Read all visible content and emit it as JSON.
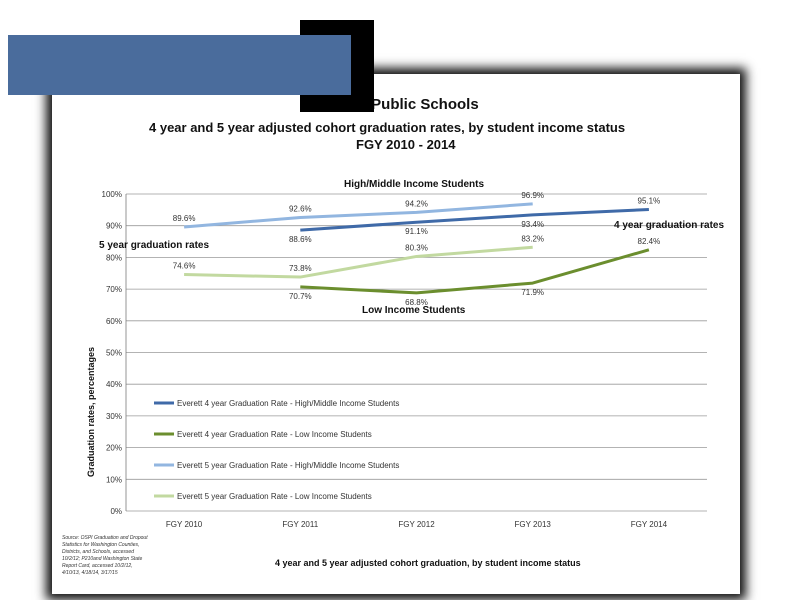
{
  "chart_data": {
    "type": "line",
    "title": "t Public Schools",
    "subtitle": "4 year and 5 year adjusted cohort graduation rates, by student income status",
    "subtitle2": "FGY 2010 - 2014",
    "xlabel": "4 year and 5 year adjusted cohort graduation, by student income status",
    "ylabel": "Graduation rates, percentages",
    "categories": [
      "FGY 2010",
      "FGY 2011",
      "FGY 2012",
      "FGY 2013",
      "FGY 2014"
    ],
    "ylim": [
      0,
      100
    ],
    "yticks": [
      "0%",
      "10%",
      "20%",
      "30%",
      "40%",
      "50%",
      "60%",
      "70%",
      "80%",
      "90%",
      "100%"
    ],
    "grid": true,
    "legend_position": "bottom-left",
    "series": [
      {
        "name": "Everett 4 year Graduation Rate - High/Middle Income Students",
        "color": "#3f6aa8",
        "values": [
          null,
          88.6,
          91.1,
          93.4,
          95.1
        ],
        "labels": [
          "",
          "88.6%",
          "91.1%",
          "93.4%",
          "95.1%"
        ]
      },
      {
        "name": "Everett 4 year Graduation Rate - Low Income Students",
        "color": "#6b8e2e",
        "values": [
          null,
          70.7,
          68.8,
          71.9,
          82.4
        ],
        "labels": [
          "",
          "70.7%",
          "68.8%",
          "71.9%",
          "82.4%"
        ]
      },
      {
        "name": "Everett 5 year Graduation Rate - High/Middle Income Students",
        "color": "#92b6e0",
        "values": [
          89.6,
          92.6,
          94.2,
          96.9,
          null
        ],
        "labels": [
          "89.6%",
          "92.6%",
          "94.2%",
          "96.9%",
          ""
        ]
      },
      {
        "name": "Everett 5 year Graduation Rate - Low Income Students",
        "color": "#c2d9a0",
        "values": [
          74.6,
          73.8,
          80.3,
          83.2,
          null
        ],
        "labels": [
          "74.6%",
          "73.8%",
          "80.3%",
          "83.2%",
          ""
        ]
      }
    ],
    "annotations": {
      "high_income": "High/Middle Income Students",
      "five_year": "5 year graduation rates",
      "four_year": "4 year graduation rates",
      "low_income": "Low Income Students"
    },
    "source_lines": [
      "Source: OSPI Graduation and Dropout",
      "Statistics for Washington Counties,",
      "Districts, and Schools, accessed",
      "10/2/12; P210and Washington State",
      "Report Card, accessed 10/2/12,",
      "4/10/13, 4/18/14, 3/17/15"
    ]
  }
}
